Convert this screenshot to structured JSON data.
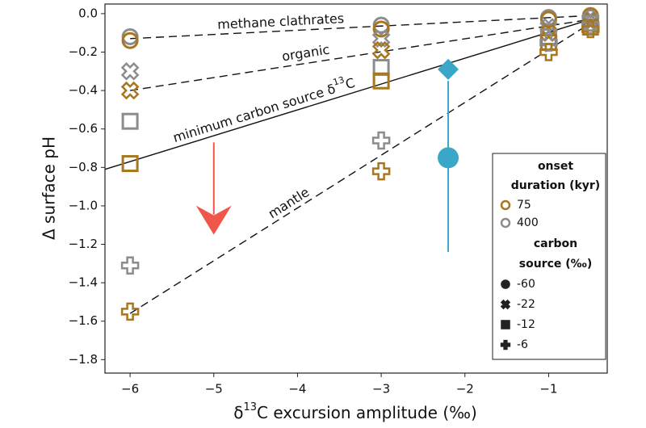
{
  "chart_data": {
    "type": "scatter",
    "x_label": {
      "prefix": "δ",
      "sup": "13",
      "suffix": "C excursion amplitude (‰)"
    },
    "y_label": "Δ surface pH",
    "xlim": [
      -6.3,
      -0.3
    ],
    "ylim": [
      -1.87,
      0.05
    ],
    "xticks": [
      {
        "value": -6,
        "label": "−6"
      },
      {
        "value": -5,
        "label": "−5"
      },
      {
        "value": -4,
        "label": "−4"
      },
      {
        "value": -3,
        "label": "−3"
      },
      {
        "value": -2,
        "label": "−2"
      },
      {
        "value": -1,
        "label": "−1"
      }
    ],
    "yticks": [
      {
        "value": 0,
        "label": "0.0"
      },
      {
        "value": -0.2,
        "label": "−0.2"
      },
      {
        "value": -0.4,
        "label": "−0.4"
      },
      {
        "value": -0.6,
        "label": "−0.6"
      },
      {
        "value": -0.8,
        "label": "−0.8"
      },
      {
        "value": -1.0,
        "label": "−1.0"
      },
      {
        "value": -1.2,
        "label": "−1.2"
      },
      {
        "value": -1.4,
        "label": "−1.4"
      },
      {
        "value": -1.6,
        "label": "−1.6"
      },
      {
        "value": -1.8,
        "label": "−1.8"
      }
    ],
    "series": [
      {
        "color": "#8c8c8c",
        "marker": "circle",
        "x": [
          -6,
          -3,
          -1,
          -0.5
        ],
        "values": [
          -0.12,
          -0.06,
          -0.02,
          -0.02
        ]
      },
      {
        "color": "#a8761e",
        "marker": "circle",
        "x": [
          -6,
          -3,
          -1,
          -0.5
        ],
        "values": [
          -0.14,
          -0.08,
          -0.03,
          -0.01
        ]
      },
      {
        "color": "#8c8c8c",
        "marker": "x",
        "x": [
          -6,
          -3,
          -1,
          -0.5
        ],
        "values": [
          -0.3,
          -0.13,
          -0.07,
          -0.03
        ]
      },
      {
        "color": "#a8761e",
        "marker": "x",
        "x": [
          -6,
          -3,
          -1,
          -0.5
        ],
        "values": [
          -0.4,
          -0.19,
          -0.1,
          -0.04
        ]
      },
      {
        "color": "#8c8c8c",
        "marker": "square",
        "x": [
          -6,
          -3,
          -1,
          -0.5
        ],
        "values": [
          -0.56,
          -0.28,
          -0.12,
          -0.05
        ]
      },
      {
        "color": "#a8761e",
        "marker": "square",
        "x": [
          -6,
          -3,
          -1,
          -0.5
        ],
        "values": [
          -0.78,
          -0.35,
          -0.15,
          -0.07
        ]
      },
      {
        "color": "#8c8c8c",
        "marker": "plus",
        "x": [
          -6,
          -3,
          -1,
          -0.5
        ],
        "values": [
          -1.31,
          -0.66,
          -0.15,
          -0.06
        ]
      },
      {
        "color": "#a8761e",
        "marker": "plus",
        "x": [
          -6,
          -3,
          -1,
          -0.5
        ],
        "values": [
          -1.55,
          -0.82,
          -0.2,
          -0.08
        ]
      }
    ],
    "lines": [
      {
        "x": [
          -6,
          -0.5
        ],
        "y": [
          -0.13,
          -0.01
        ],
        "style": "dashed",
        "label": "methane clathrates"
      },
      {
        "x": [
          -6,
          -0.5
        ],
        "y": [
          -0.4,
          -0.03
        ],
        "style": "dashed",
        "label": "organic"
      },
      {
        "x": [
          -6.3,
          -0.5
        ],
        "y": [
          -0.81,
          -0.03
        ],
        "style": "solid",
        "label": {
          "prefix": "minimum carbon source δ",
          "sup": "13",
          "suffix": "C"
        }
      },
      {
        "x": [
          -6,
          -0.5
        ],
        "y": [
          -1.56,
          -0.05
        ],
        "style": "dashed",
        "label": "mantle"
      }
    ],
    "estimate": {
      "x": -2.2,
      "diamond": -0.29,
      "circle": -0.75,
      "range": [
        -0.35,
        -1.24
      ],
      "color": "#3aa6c8"
    },
    "arrow": {
      "x": -5,
      "y": [
        -0.67,
        -1.15
      ],
      "color": "#f0564a"
    },
    "legend": {
      "title": [
        "onset",
        "duration (kyr)"
      ],
      "durations": [
        {
          "label": "75",
          "color": "#a8761e"
        },
        {
          "label": "400",
          "color": "#8c8c8c"
        }
      ],
      "source_title": [
        "carbon",
        "source (‰)"
      ],
      "sources": [
        {
          "label": "-60",
          "marker": "circle"
        },
        {
          "label": "-22",
          "marker": "x"
        },
        {
          "label": "-12",
          "marker": "square"
        },
        {
          "label": "-6",
          "marker": "plus"
        }
      ]
    }
  }
}
